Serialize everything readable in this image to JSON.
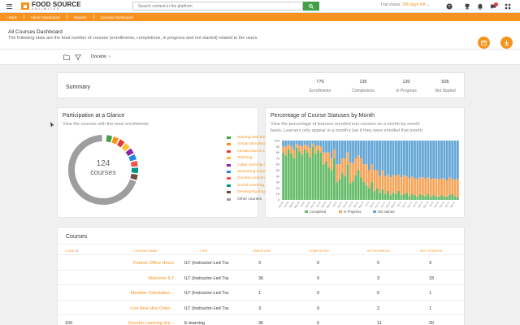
{
  "brand": {
    "line1": "FOOD SOURCE",
    "line2": "UNLIMITED"
  },
  "search": {
    "placeholder": "Search content in the platform"
  },
  "trial": {
    "prefix": "Trial status:",
    "days": "396 days left"
  },
  "breadcrumb": {
    "back": "Back",
    "items": [
      "Admin Dashboard",
      "Reports",
      "Courses Dashboard"
    ]
  },
  "page": {
    "title": "All Courses Dashboard",
    "description": "The following stats are the total number of courses (enrollments, completions, in progress and not started) related to the users."
  },
  "filter": {
    "branch": "Docebo",
    "chevron": "›"
  },
  "summary": {
    "title": "Summary",
    "stats": [
      {
        "value": "770",
        "label": "Enrollments"
      },
      {
        "value": "135",
        "label": "Completions"
      },
      {
        "value": "130",
        "label": "In Progress"
      },
      {
        "value": "505",
        "label": "Not Started"
      }
    ]
  },
  "participation": {
    "title": "Participation at a Glance",
    "description": "View the courses with the most enrollments.",
    "center_value": "124",
    "center_label": "courses",
    "legend": [
      {
        "label": "Starting with the Basics",
        "color": "#43a047"
      },
      {
        "label": "Virtual Discussions",
        "color": "#f5931e"
      },
      {
        "label": "Introduction to Leadership",
        "color": "#e53935"
      },
      {
        "label": "Phishing",
        "color": "#fbc02d"
      },
      {
        "label": "Cyber Security Awareness",
        "color": "#8e24aa"
      },
      {
        "label": "Measuring Impact with Docebo...",
        "color": "#1e88e5"
      },
      {
        "label": "Docebo Learning Suite",
        "color": "#ef5350"
      },
      {
        "label": "Social Learning with Docebo, Co...",
        "color": "#009688"
      },
      {
        "label": "Developing Engaging Content wi...",
        "color": "#6d4c41"
      },
      {
        "label": "Other courses",
        "color": "#9e9e9e"
      }
    ]
  },
  "status_chart": {
    "title": "Percentage of Course Statuses by Month",
    "description_line1": "View the percentage of learners enrolled into courses on a month-by-month",
    "description_line2": "basis. Learners only appear in a month's bar if they were enrolled that month."
  },
  "chart_data": {
    "type": "bar",
    "stacked": true,
    "ylim": [
      0,
      100
    ],
    "yticks": [
      "100",
      "90",
      "80",
      "70",
      "60",
      "50",
      "40",
      "30",
      "20",
      "10",
      "0"
    ],
    "categories": [
      "Nov-18",
      "Dec-18",
      "Jan-19",
      "Feb-19",
      "Mar-19",
      "Apr-19",
      "May-19",
      "Jun-19",
      "Jul-19",
      "Aug-19",
      "Sep-19",
      "Oct-19",
      "Nov-19",
      "Dec-19",
      "Jan-20",
      "Feb-20",
      "Mar-20",
      "Apr-20",
      "May-20",
      "Jun-20",
      "Jul-20",
      "Aug-20",
      "Sep-20",
      "Oct-20",
      "Nov-20",
      "Dec-20",
      "Jan-21",
      "Feb-21",
      "Mar-21",
      "Apr-21",
      "May-21",
      "Jun-21",
      "Jul-21",
      "Aug-21",
      "Sep-21",
      "Oct-21",
      "Nov-21",
      "Dec-21",
      "Jan-22",
      "Feb-22",
      "Mar-22",
      "Apr-22",
      "May-22",
      "Jun-22",
      "Jul-22",
      "Aug-22",
      "Sep-22",
      "Oct-22",
      "Nov-22",
      "Dec-22",
      "Jan-23",
      "Feb-23",
      "Mar-23",
      "Apr-23",
      "May-23",
      "Jun-23",
      "Jul-23",
      "Aug-23",
      "Sep-23",
      "Oct-23",
      "Nov-23",
      "Dec-23",
      "Jan-24",
      "Feb-24",
      "Mar-24",
      "Apr-24"
    ],
    "series": [
      {
        "name": "Completed",
        "color": "#66bb6a",
        "values": [
          80,
          75,
          85,
          78,
          70,
          88,
          82,
          76,
          85,
          80,
          72,
          90,
          78,
          84,
          80,
          60,
          65,
          55,
          50,
          70,
          30,
          35,
          45,
          40,
          60,
          28,
          32,
          42,
          50,
          38,
          30,
          25,
          20,
          30,
          15,
          20,
          12,
          18,
          10,
          15,
          8,
          12,
          10,
          15,
          8,
          10,
          12,
          6,
          10,
          8,
          5,
          10,
          8,
          6,
          10,
          5,
          8,
          6,
          5,
          8,
          6,
          5,
          8,
          10,
          6,
          5
        ]
      },
      {
        "name": "In Progress",
        "color": "#f5a65b",
        "values": [
          10,
          15,
          8,
          12,
          15,
          6,
          10,
          14,
          8,
          12,
          16,
          5,
          12,
          8,
          10,
          20,
          15,
          25,
          20,
          15,
          30,
          25,
          25,
          30,
          20,
          35,
          30,
          28,
          25,
          32,
          30,
          35,
          30,
          30,
          35,
          30,
          28,
          32,
          30,
          28,
          30,
          30,
          30,
          28,
          30,
          32,
          28,
          30,
          30,
          28,
          30,
          28,
          30,
          30,
          28,
          30,
          28,
          30,
          30,
          28,
          30,
          28,
          30,
          25,
          28,
          30
        ]
      },
      {
        "name": "Not started",
        "color": "#64a7d6",
        "values": [
          10,
          10,
          7,
          10,
          15,
          6,
          8,
          10,
          7,
          8,
          12,
          5,
          10,
          8,
          10,
          20,
          20,
          20,
          30,
          15,
          40,
          40,
          30,
          30,
          20,
          37,
          38,
          30,
          25,
          30,
          40,
          40,
          50,
          40,
          50,
          50,
          60,
          50,
          60,
          57,
          62,
          58,
          60,
          57,
          62,
          58,
          60,
          64,
          60,
          64,
          65,
          62,
          62,
          64,
          62,
          65,
          64,
          64,
          65,
          64,
          64,
          67,
          62,
          65,
          66,
          65
        ]
      }
    ],
    "legend_position": "bottom"
  },
  "courses": {
    "title": "Courses",
    "columns": [
      "CODE",
      "COURSE NAME",
      "TYPE",
      "ENROLLED",
      "COMPLETED",
      "IN PROGRESS",
      "NOT STARTED"
    ],
    "rows": [
      {
        "code": "",
        "name": "Partner Office Hours",
        "type": "ILT (Instructor-Led Tra",
        "enrolled": "3",
        "completed": "0",
        "in_progress": "0",
        "not_started": "3"
      },
      {
        "code": "",
        "name": "Welcome ILT",
        "type": "ILT (Instructor-Led Tra",
        "enrolled": "36",
        "completed": "0",
        "in_progress": "3",
        "not_started": "33"
      },
      {
        "code": "",
        "name": "Member Orientation...",
        "type": "ILT (Instructor-Led Tra",
        "enrolled": "1",
        "completed": "0",
        "in_progress": "0",
        "not_started": "1"
      },
      {
        "code": "",
        "name": "Live New Hire Onbo...",
        "type": "ILT (Instructor-Led Tra",
        "enrolled": "3",
        "completed": "0",
        "in_progress": "2",
        "not_started": "1"
      },
      {
        "code": "100",
        "name": "Docebo Learning Sui...",
        "type": "E-learning",
        "enrolled": "36",
        "completed": "5",
        "in_progress": "11",
        "not_started": "20"
      }
    ]
  }
}
